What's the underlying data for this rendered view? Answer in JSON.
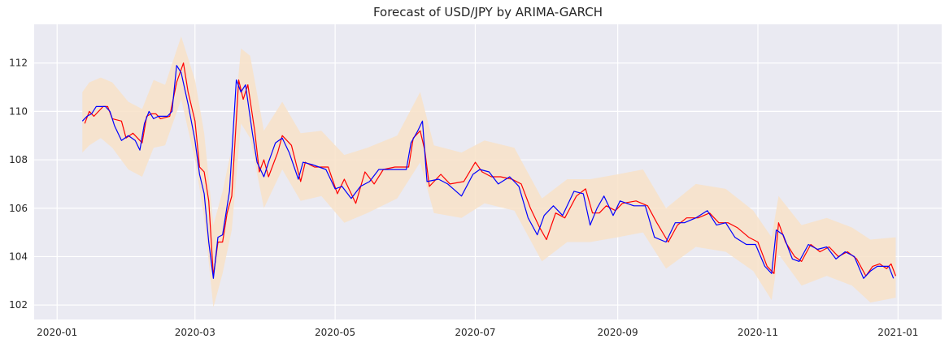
{
  "chart_data": {
    "type": "line",
    "title": "Forecast of USD/JPY by ARIMA-GARCH",
    "xlabel": "",
    "ylabel": "",
    "x_tick_labels": [
      "2020-01",
      "2020-03",
      "2020-05",
      "2020-07",
      "2020-09",
      "2020-11",
      "2021-01"
    ],
    "y_tick_labels": [
      "102",
      "104",
      "106",
      "108",
      "110",
      "112"
    ],
    "xlim": [
      "2019-12-22",
      "2021-01-20"
    ],
    "ylim": [
      101.4,
      113.6
    ],
    "grid": true,
    "legend": "none",
    "colors": {
      "background": "#eaeaf2",
      "actual": "#ff0000",
      "forecast": "#0000ff",
      "band": "#f8e2c8"
    },
    "series": [
      {
        "role": "actual",
        "color": "#ff0000",
        "points": [
          [
            "2020-01-13",
            109.5
          ],
          [
            "2020-01-15",
            110.0
          ],
          [
            "2020-01-17",
            109.8
          ],
          [
            "2020-01-21",
            110.2
          ],
          [
            "2020-01-23",
            110.2
          ],
          [
            "2020-01-25",
            109.7
          ],
          [
            "2020-01-29",
            109.6
          ],
          [
            "2020-01-31",
            108.9
          ],
          [
            "2020-02-03",
            109.1
          ],
          [
            "2020-02-05",
            108.9
          ],
          [
            "2020-02-07",
            108.7
          ],
          [
            "2020-02-09",
            109.8
          ],
          [
            "2020-02-11",
            109.9
          ],
          [
            "2020-02-13",
            109.9
          ],
          [
            "2020-02-15",
            109.7
          ],
          [
            "2020-02-19",
            109.8
          ],
          [
            "2020-02-22",
            111.2
          ],
          [
            "2020-02-25",
            112.0
          ],
          [
            "2020-02-27",
            110.8
          ],
          [
            "2020-03-01",
            109.6
          ],
          [
            "2020-03-03",
            107.7
          ],
          [
            "2020-03-05",
            107.5
          ],
          [
            "2020-03-07",
            106.3
          ],
          [
            "2020-03-09",
            103.2
          ],
          [
            "2020-03-11",
            104.6
          ],
          [
            "2020-03-13",
            104.6
          ],
          [
            "2020-03-15",
            105.8
          ],
          [
            "2020-03-17",
            106.5
          ],
          [
            "2020-03-20",
            111.3
          ],
          [
            "2020-03-22",
            110.5
          ],
          [
            "2020-03-24",
            111.1
          ],
          [
            "2020-03-27",
            109.2
          ],
          [
            "2020-03-29",
            107.5
          ],
          [
            "2020-03-31",
            108.0
          ],
          [
            "2020-04-02",
            107.3
          ],
          [
            "2020-04-06",
            108.3
          ],
          [
            "2020-04-08",
            109.0
          ],
          [
            "2020-04-12",
            108.6
          ],
          [
            "2020-04-16",
            107.1
          ],
          [
            "2020-04-18",
            107.9
          ],
          [
            "2020-04-22",
            107.7
          ],
          [
            "2020-04-28",
            107.7
          ],
          [
            "2020-05-02",
            106.6
          ],
          [
            "2020-05-05",
            107.2
          ],
          [
            "2020-05-10",
            106.2
          ],
          [
            "2020-05-14",
            107.5
          ],
          [
            "2020-05-18",
            107.0
          ],
          [
            "2020-05-22",
            107.6
          ],
          [
            "2020-05-27",
            107.7
          ],
          [
            "2020-06-02",
            107.7
          ],
          [
            "2020-06-04",
            108.9
          ],
          [
            "2020-06-07",
            109.2
          ],
          [
            "2020-06-09",
            108.4
          ],
          [
            "2020-06-11",
            106.9
          ],
          [
            "2020-06-16",
            107.4
          ],
          [
            "2020-06-20",
            107.0
          ],
          [
            "2020-06-26",
            107.1
          ],
          [
            "2020-07-01",
            107.9
          ],
          [
            "2020-07-04",
            107.5
          ],
          [
            "2020-07-08",
            107.3
          ],
          [
            "2020-07-12",
            107.3
          ],
          [
            "2020-07-17",
            107.2
          ],
          [
            "2020-07-21",
            107.0
          ],
          [
            "2020-07-25",
            106.0
          ],
          [
            "2020-07-29",
            105.2
          ],
          [
            "2020-08-01",
            104.7
          ],
          [
            "2020-08-05",
            105.8
          ],
          [
            "2020-08-09",
            105.6
          ],
          [
            "2020-08-14",
            106.5
          ],
          [
            "2020-08-18",
            106.8
          ],
          [
            "2020-08-21",
            105.8
          ],
          [
            "2020-08-24",
            105.8
          ],
          [
            "2020-08-27",
            106.1
          ],
          [
            "2020-08-31",
            105.9
          ],
          [
            "2020-09-03",
            106.2
          ],
          [
            "2020-09-09",
            106.3
          ],
          [
            "2020-09-14",
            106.1
          ],
          [
            "2020-09-18",
            105.4
          ],
          [
            "2020-09-23",
            104.6
          ],
          [
            "2020-09-27",
            105.3
          ],
          [
            "2020-10-01",
            105.6
          ],
          [
            "2020-10-06",
            105.6
          ],
          [
            "2020-10-11",
            105.8
          ],
          [
            "2020-10-15",
            105.4
          ],
          [
            "2020-10-19",
            105.4
          ],
          [
            "2020-10-23",
            105.2
          ],
          [
            "2020-10-28",
            104.8
          ],
          [
            "2020-11-01",
            104.6
          ],
          [
            "2020-11-05",
            103.6
          ],
          [
            "2020-11-08",
            103.3
          ],
          [
            "2020-11-10",
            105.4
          ],
          [
            "2020-11-13",
            104.6
          ],
          [
            "2020-11-17",
            104.0
          ],
          [
            "2020-11-20",
            103.8
          ],
          [
            "2020-11-24",
            104.5
          ],
          [
            "2020-11-28",
            104.2
          ],
          [
            "2020-12-02",
            104.4
          ],
          [
            "2020-12-06",
            104.0
          ],
          [
            "2020-12-10",
            104.2
          ],
          [
            "2020-12-14",
            103.9
          ],
          [
            "2020-12-18",
            103.2
          ],
          [
            "2020-12-21",
            103.6
          ],
          [
            "2020-12-24",
            103.7
          ],
          [
            "2020-12-27",
            103.5
          ],
          [
            "2020-12-29",
            103.7
          ],
          [
            "2020-12-31",
            103.2
          ]
        ]
      },
      {
        "role": "forecast",
        "color": "#0000ff",
        "points": [
          [
            "2020-01-12",
            109.6
          ],
          [
            "2020-01-14",
            109.8
          ],
          [
            "2020-01-16",
            109.9
          ],
          [
            "2020-01-18",
            110.2
          ],
          [
            "2020-01-22",
            110.2
          ],
          [
            "2020-01-24",
            110.0
          ],
          [
            "2020-01-26",
            109.4
          ],
          [
            "2020-01-29",
            108.8
          ],
          [
            "2020-02-01",
            109.0
          ],
          [
            "2020-02-04",
            108.8
          ],
          [
            "2020-02-06",
            108.4
          ],
          [
            "2020-02-08",
            109.5
          ],
          [
            "2020-02-10",
            110.0
          ],
          [
            "2020-02-12",
            109.7
          ],
          [
            "2020-02-14",
            109.8
          ],
          [
            "2020-02-18",
            109.8
          ],
          [
            "2020-02-20",
            110.0
          ],
          [
            "2020-02-22",
            111.9
          ],
          [
            "2020-02-24",
            111.6
          ],
          [
            "2020-02-27",
            110.3
          ],
          [
            "2020-03-01",
            108.8
          ],
          [
            "2020-03-03",
            107.4
          ],
          [
            "2020-03-05",
            106.6
          ],
          [
            "2020-03-07",
            104.6
          ],
          [
            "2020-03-09",
            103.1
          ],
          [
            "2020-03-11",
            104.8
          ],
          [
            "2020-03-13",
            104.9
          ],
          [
            "2020-03-16",
            106.7
          ],
          [
            "2020-03-19",
            111.3
          ],
          [
            "2020-03-21",
            110.8
          ],
          [
            "2020-03-23",
            111.1
          ],
          [
            "2020-03-26",
            109.1
          ],
          [
            "2020-03-28",
            107.9
          ],
          [
            "2020-03-31",
            107.3
          ],
          [
            "2020-04-02",
            107.9
          ],
          [
            "2020-04-05",
            108.7
          ],
          [
            "2020-04-08",
            108.9
          ],
          [
            "2020-04-11",
            108.3
          ],
          [
            "2020-04-15",
            107.2
          ],
          [
            "2020-04-17",
            107.9
          ],
          [
            "2020-04-21",
            107.8
          ],
          [
            "2020-04-27",
            107.6
          ],
          [
            "2020-05-01",
            106.8
          ],
          [
            "2020-05-04",
            106.9
          ],
          [
            "2020-05-08",
            106.4
          ],
          [
            "2020-05-12",
            106.9
          ],
          [
            "2020-05-16",
            107.1
          ],
          [
            "2020-05-20",
            107.6
          ],
          [
            "2020-05-26",
            107.6
          ],
          [
            "2020-06-01",
            107.6
          ],
          [
            "2020-06-03",
            108.7
          ],
          [
            "2020-06-06",
            109.2
          ],
          [
            "2020-06-08",
            109.6
          ],
          [
            "2020-06-10",
            107.1
          ],
          [
            "2020-06-15",
            107.2
          ],
          [
            "2020-06-19",
            107.0
          ],
          [
            "2020-06-25",
            106.5
          ],
          [
            "2020-06-30",
            107.4
          ],
          [
            "2020-07-03",
            107.6
          ],
          [
            "2020-07-07",
            107.5
          ],
          [
            "2020-07-11",
            107.0
          ],
          [
            "2020-07-16",
            107.3
          ],
          [
            "2020-07-20",
            106.9
          ],
          [
            "2020-07-24",
            105.6
          ],
          [
            "2020-07-28",
            104.9
          ],
          [
            "2020-07-31",
            105.7
          ],
          [
            "2020-08-04",
            106.1
          ],
          [
            "2020-08-08",
            105.7
          ],
          [
            "2020-08-13",
            106.7
          ],
          [
            "2020-08-17",
            106.6
          ],
          [
            "2020-08-20",
            105.3
          ],
          [
            "2020-08-23",
            106.0
          ],
          [
            "2020-08-26",
            106.5
          ],
          [
            "2020-08-30",
            105.7
          ],
          [
            "2020-09-02",
            106.3
          ],
          [
            "2020-09-08",
            106.1
          ],
          [
            "2020-09-13",
            106.1
          ],
          [
            "2020-09-17",
            104.8
          ],
          [
            "2020-09-22",
            104.6
          ],
          [
            "2020-09-26",
            105.4
          ],
          [
            "2020-09-30",
            105.4
          ],
          [
            "2020-10-05",
            105.6
          ],
          [
            "2020-10-10",
            105.9
          ],
          [
            "2020-10-14",
            105.3
          ],
          [
            "2020-10-18",
            105.4
          ],
          [
            "2020-10-22",
            104.8
          ],
          [
            "2020-10-27",
            104.5
          ],
          [
            "2020-10-31",
            104.5
          ],
          [
            "2020-11-04",
            103.6
          ],
          [
            "2020-11-07",
            103.3
          ],
          [
            "2020-11-09",
            105.1
          ],
          [
            "2020-11-12",
            104.9
          ],
          [
            "2020-11-16",
            103.9
          ],
          [
            "2020-11-19",
            103.8
          ],
          [
            "2020-11-23",
            104.5
          ],
          [
            "2020-11-27",
            104.3
          ],
          [
            "2020-12-01",
            104.4
          ],
          [
            "2020-12-05",
            103.9
          ],
          [
            "2020-12-09",
            104.2
          ],
          [
            "2020-12-13",
            104.0
          ],
          [
            "2020-12-17",
            103.1
          ],
          [
            "2020-12-20",
            103.4
          ],
          [
            "2020-12-23",
            103.6
          ],
          [
            "2020-12-26",
            103.6
          ],
          [
            "2020-12-28",
            103.6
          ],
          [
            "2020-12-30",
            103.1
          ]
        ]
      }
    ],
    "band": {
      "color": "#f8e2c8",
      "points": [
        [
          "2020-01-12",
          108.3,
          110.8
        ],
        [
          "2020-01-15",
          108.6,
          111.2
        ],
        [
          "2020-01-20",
          108.9,
          111.4
        ],
        [
          "2020-01-25",
          108.5,
          111.2
        ],
        [
          "2020-02-01",
          107.6,
          110.4
        ],
        [
          "2020-02-07",
          107.3,
          110.1
        ],
        [
          "2020-02-12",
          108.5,
          111.3
        ],
        [
          "2020-02-17",
          108.6,
          111.1
        ],
        [
          "2020-02-24",
          110.5,
          113.1
        ],
        [
          "2020-03-01",
          108.0,
          111.3
        ],
        [
          "2020-03-05",
          105.6,
          109.1
        ],
        [
          "2020-03-09",
          101.9,
          105.3
        ],
        [
          "2020-03-13",
          103.3,
          106.7
        ],
        [
          "2020-03-17",
          105.1,
          108.5
        ],
        [
          "2020-03-21",
          109.5,
          112.6
        ],
        [
          "2020-03-25",
          108.9,
          112.3
        ],
        [
          "2020-03-31",
          106.0,
          109.2
        ],
        [
          "2020-04-08",
          107.6,
          110.4
        ],
        [
          "2020-04-16",
          106.3,
          109.1
        ],
        [
          "2020-04-25",
          106.5,
          109.2
        ],
        [
          "2020-05-05",
          105.4,
          108.2
        ],
        [
          "2020-05-15",
          105.8,
          108.5
        ],
        [
          "2020-05-28",
          106.4,
          109.0
        ],
        [
          "2020-06-07",
          107.9,
          110.8
        ],
        [
          "2020-06-13",
          105.8,
          108.6
        ],
        [
          "2020-06-25",
          105.6,
          108.3
        ],
        [
          "2020-07-05",
          106.2,
          108.8
        ],
        [
          "2020-07-18",
          105.9,
          108.5
        ],
        [
          "2020-07-30",
          103.8,
          106.4
        ],
        [
          "2020-08-10",
          104.6,
          107.2
        ],
        [
          "2020-08-20",
          104.6,
          107.2
        ],
        [
          "2020-09-01",
          104.8,
          107.4
        ],
        [
          "2020-09-12",
          105.0,
          107.6
        ],
        [
          "2020-09-22",
          103.5,
          106.0
        ],
        [
          "2020-10-05",
          104.4,
          107.0
        ],
        [
          "2020-10-18",
          104.2,
          106.8
        ],
        [
          "2020-10-30",
          103.4,
          105.9
        ],
        [
          "2020-11-07",
          102.2,
          104.8
        ],
        [
          "2020-11-10",
          104.1,
          106.5
        ],
        [
          "2020-11-20",
          102.8,
          105.3
        ],
        [
          "2020-12-01",
          103.2,
          105.6
        ],
        [
          "2020-12-12",
          102.8,
          105.2
        ],
        [
          "2020-12-20",
          102.1,
          104.7
        ],
        [
          "2020-12-31",
          102.3,
          104.8
        ]
      ]
    }
  }
}
